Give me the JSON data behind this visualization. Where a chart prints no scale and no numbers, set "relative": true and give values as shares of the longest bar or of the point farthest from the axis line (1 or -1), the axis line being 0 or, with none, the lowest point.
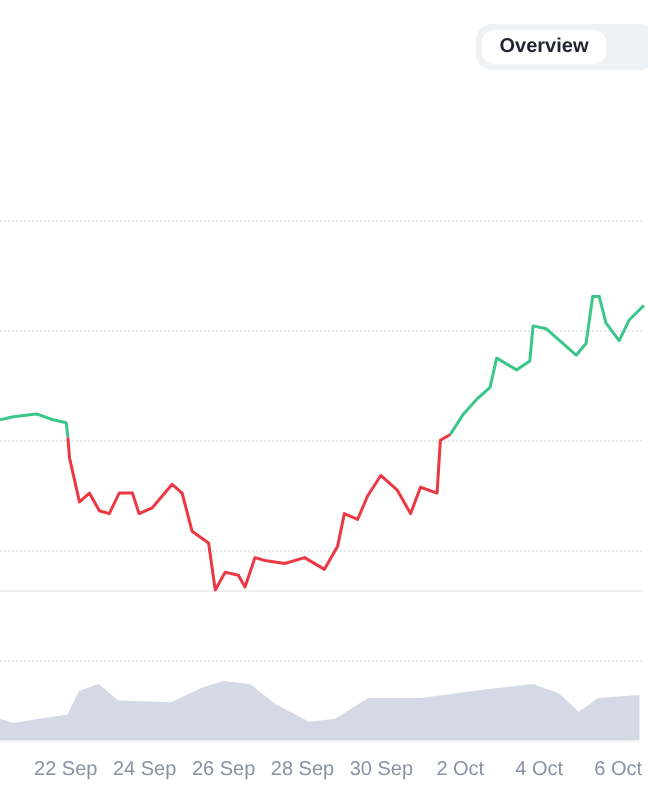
{
  "chart_data": [
    {
      "type": "line",
      "relative": true,
      "grid": "y",
      "marker": "none",
      "line_style": "solid",
      "annotations": [
        "Overview"
      ],
      "xlim": [
        "--09-20T08:00",
        "--10-06T13:00"
      ],
      "series": [
        {
          "color": "#3bc68a",
          "x": [
            "--09-20T08:00",
            "--09-20T16:00",
            "--09-21T06:00",
            "--09-21T16:00",
            "--09-22T00:00",
            "--09-22T01:00"
          ],
          "values": [
            0.58,
            0.59,
            0.6,
            0.58,
            0.57,
            0.52
          ]
        },
        {
          "color": "#ea3943",
          "x": [
            "--09-22T01:00",
            "--09-22T02:00",
            "--09-22T08:00",
            "--09-22T14:00",
            "--09-22T20:00",
            "--09-23T02:00",
            "--09-23T08:00",
            "--09-23T16:00",
            "--09-23T20:00",
            "--09-24T04:00",
            "--09-24T16:00",
            "--09-24T22:00",
            "--09-25T04:00",
            "--09-25T14:00",
            "--09-25T18:00",
            "--09-26T00:00",
            "--09-26T08:00",
            "--09-26T12:00",
            "--09-26T18:00",
            "--09-27T00:00",
            "--09-27T12:00",
            "--09-28T00:00",
            "--09-28T12:00",
            "--09-28T20:00",
            "--09-29T00:00",
            "--09-29T08:00",
            "--09-29T14:00",
            "--09-29T22:00",
            "--09-30T08:00",
            "--09-30T16:00",
            "--09-30T22:00",
            "--10-01T08:00",
            "--10-01T10:00",
            "--10-01T16:00"
          ],
          "values": [
            0.52,
            0.45,
            0.3,
            0.33,
            0.27,
            0.26,
            0.33,
            0.33,
            0.26,
            0.28,
            0.36,
            0.33,
            0.2,
            0.16,
            0,
            0.06,
            0.05,
            0.01,
            0.11,
            0.1,
            0.09,
            0.11,
            0.07,
            0.15,
            0.26,
            0.24,
            0.32,
            0.39,
            0.34,
            0.26,
            0.35,
            0.33,
            0.51,
            0.53
          ]
        },
        {
          "color": "#3bc68a",
          "x": [
            "--10-01T16:00",
            "--10-02T00:00",
            "--10-02T08:00",
            "--10-02T16:00",
            "--10-02T20:00",
            "--10-03T08:00",
            "--10-03T16:00",
            "--10-03T18:00",
            "--10-04T02:00",
            "--10-04T12:00",
            "--10-04T20:00",
            "--10-05T02:00",
            "--10-05T06:00",
            "--10-05T10:00",
            "--10-05T14:00",
            "--10-05T22:00",
            "--10-06T04:00",
            "--10-06T13:00"
          ],
          "values": [
            0.53,
            0.6,
            0.65,
            0.69,
            0.79,
            0.75,
            0.78,
            0.9,
            0.89,
            0.84,
            0.8,
            0.84,
            1.0,
            1.0,
            0.91,
            0.85,
            0.92,
            0.97
          ]
        }
      ]
    },
    {
      "type": "area",
      "relative": true,
      "xlim": [
        "--09-20T08:00",
        "--10-06T13:00"
      ],
      "xticks": [
        {
          "value": "--09-22",
          "label": "22 Sep"
        },
        {
          "value": "--09-24",
          "label": "24 Sep"
        },
        {
          "value": "--09-26",
          "label": "26 Sep"
        },
        {
          "value": "--09-28",
          "label": "28 Sep"
        },
        {
          "value": "--09-30",
          "label": "30 Sep"
        },
        {
          "value": "--10-02",
          "label": "2 Oct"
        },
        {
          "value": "--10-04",
          "label": "4 Oct"
        },
        {
          "value": "--10-06",
          "label": "6 Oct"
        }
      ],
      "series": [
        {
          "color": "#d5d9e6",
          "x": [
            "--09-20T08:00",
            "--09-20T16:00",
            "--09-21T08:00",
            "--09-22T01:00",
            "--09-22T08:00",
            "--09-22T20:00",
            "--09-23T08:00",
            "--09-24T16:00",
            "--09-25T12:00",
            "--09-26T00:00",
            "--09-26T16:00",
            "--09-27T08:00",
            "--09-28T04:00",
            "--09-28T20:00",
            "--09-29T16:00",
            "--10-01T00:00",
            "--10-02T08:00",
            "--10-03T20:00",
            "--10-04T12:00",
            "--10-05T00:00",
            "--10-05T12:00",
            "--10-06T13:00"
          ],
          "values": [
            0.36,
            0.29,
            0.36,
            0.43,
            0.83,
            0.95,
            0.67,
            0.64,
            0.9,
            1.0,
            0.95,
            0.6,
            0.31,
            0.36,
            0.71,
            0.71,
            0.83,
            0.95,
            0.79,
            0.48,
            0.71,
            0.76
          ]
        }
      ]
    }
  ]
}
